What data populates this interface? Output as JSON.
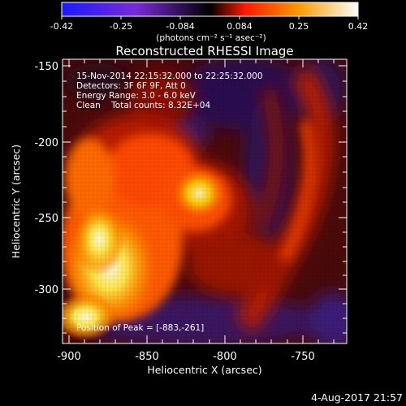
{
  "colorbar": {
    "tick_labels": [
      "-0.42",
      "-0.25",
      "-0.084",
      "0.084",
      "0.25",
      "0.42"
    ],
    "units_label": "(photons cm⁻² s⁻¹ asec⁻²)",
    "colors": [
      "#1a1aff",
      "#7a2ad6",
      "#000000",
      "#ff1a00",
      "#ff9a00",
      "#ffffff"
    ]
  },
  "plot": {
    "title": "Reconstructed RHESSI Image",
    "info_lines": [
      "15-Nov-2014 22:15:32.000 to 22:25:32.000",
      "Detectors: 3F 6F 9F, Att 0",
      "Energy Range: 3.0 - 6.0 keV",
      "Clean    Total counts: 8.32E+04"
    ],
    "peak_label": "Position of Peak = [-883,-261]"
  },
  "axes": {
    "x_label": "Heliocentric X (arcsec)",
    "y_label": "Heliocentric Y (arcsec)",
    "x_ticks": [
      "-900",
      "-850",
      "-800",
      "-750"
    ],
    "y_ticks": [
      "-150",
      "-200",
      "-250",
      "-300"
    ]
  },
  "footer": {
    "timestamp": "4-Aug-2017 21:57"
  }
}
